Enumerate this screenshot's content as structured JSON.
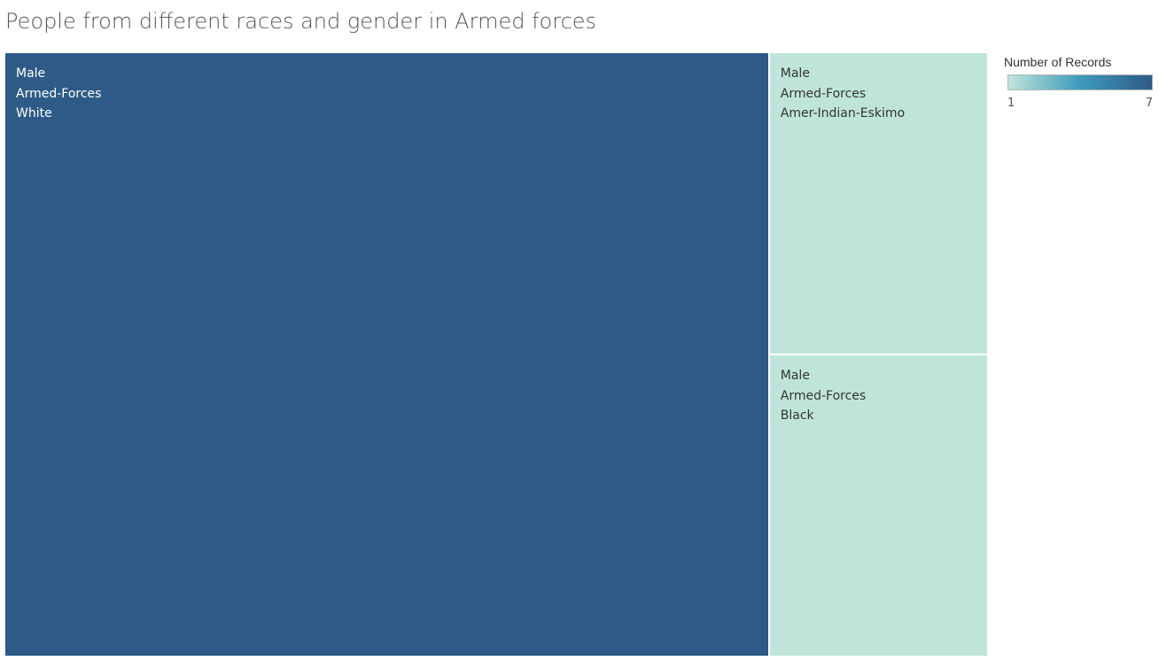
{
  "chart_data": {
    "type": "treemap",
    "title": "People from different races and gender in Armed forces",
    "measure": "Number of Records",
    "tiles": [
      {
        "gender": "Male",
        "occupation": "Armed-Forces",
        "race": "White",
        "value": 7
      },
      {
        "gender": "Male",
        "occupation": "Armed-Forces",
        "race": "Amer-Indian-Eskimo",
        "value": 1
      },
      {
        "gender": "Male",
        "occupation": "Armed-Forces",
        "race": "Black",
        "value": 1
      }
    ],
    "legend": {
      "title": "Number of Records",
      "min_label": "1",
      "max_label": "7",
      "min": 1,
      "max": 7,
      "placement": "top-right",
      "color_low": "#bfe5da",
      "color_mid": "#3e9bbd",
      "color_high": "#2e5a87"
    }
  }
}
